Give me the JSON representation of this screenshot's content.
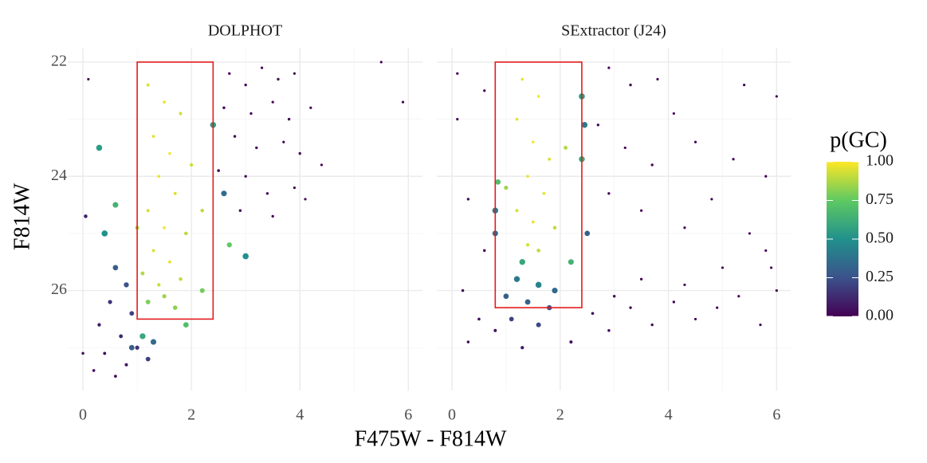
{
  "x_label": "F475W - F814W",
  "y_label": "F814W",
  "colorbar": {
    "title": "p(GC)",
    "colors": [
      "#440154",
      "#3b528b",
      "#21918c",
      "#5ec962",
      "#fde725"
    ],
    "lim": [
      0,
      1
    ],
    "ticks": [
      {
        "value": 0,
        "label": "0.00"
      },
      {
        "value": 0.25,
        "label": "0.25"
      },
      {
        "value": 0.5,
        "label": "0.50"
      },
      {
        "value": 0.75,
        "label": "0.75"
      },
      {
        "value": 1,
        "label": "1.00"
      }
    ]
  },
  "chart_data": [
    {
      "type": "scatter",
      "title": "DOLPHOT",
      "xlim": [
        -0.28,
        6.26
      ],
      "ylim": [
        27.75,
        21.75
      ],
      "xticks": [
        0,
        2,
        4,
        6
      ],
      "yticks": [
        22,
        24,
        26
      ],
      "xminor": [
        1,
        3,
        5
      ],
      "yminor": [
        23,
        25,
        27
      ],
      "grid": true,
      "box": {
        "x": [
          1,
          2.4
        ],
        "y": [
          22,
          26.5
        ],
        "color": "#e41a1c"
      },
      "x": [
        2.7,
        3.0,
        3.3,
        3.6,
        3.9,
        2.6,
        3.1,
        3.5,
        3.8,
        4.2,
        2.8,
        3.2,
        3.7,
        4.0,
        4.4,
        2.5,
        3.0,
        3.4,
        3.9,
        2.9,
        3.5,
        4.1,
        5.5,
        5.9,
        0.1,
        1.2,
        1.5,
        1.8,
        1.3,
        1.6,
        1.4,
        1.7,
        1.2,
        1.5,
        1.9,
        1.3,
        1.6,
        1.1,
        1.4,
        1.8,
        1.5,
        1.2,
        1.7,
        2.0,
        2.2,
        1.0,
        0.3,
        0.6,
        0.4,
        2.4,
        2.6,
        2.7,
        3.0,
        1.9,
        2.2,
        1.1,
        0.6,
        0.8,
        0.5,
        0.9,
        0.3,
        0.7,
        1.0,
        0.4,
        0.8,
        0.2,
        1.2,
        0.6,
        0.0,
        0.05,
        1.3,
        0.9
      ],
      "y": [
        22.2,
        22.4,
        22.1,
        22.3,
        22.2,
        22.8,
        22.9,
        22.7,
        23.0,
        22.8,
        23.3,
        23.5,
        23.4,
        23.6,
        23.8,
        23.9,
        24.0,
        24.3,
        24.2,
        24.6,
        24.7,
        24.4,
        22.0,
        22.7,
        22.3,
        22.4,
        22.7,
        22.9,
        23.3,
        23.6,
        24.0,
        24.3,
        24.6,
        24.9,
        25.0,
        25.3,
        25.5,
        25.7,
        25.9,
        25.8,
        26.1,
        26.2,
        26.3,
        23.8,
        24.6,
        24.9,
        23.5,
        24.5,
        25.0,
        23.1,
        24.3,
        25.2,
        25.4,
        26.6,
        26.0,
        26.8,
        25.6,
        25.9,
        26.2,
        26.4,
        26.6,
        26.8,
        27.0,
        27.1,
        27.3,
        27.4,
        27.2,
        27.5,
        27.1,
        24.7,
        26.9,
        27.0
      ],
      "p": [
        0.01,
        0.01,
        0.0,
        0.01,
        0.0,
        0.02,
        0.01,
        0.0,
        0.01,
        0.0,
        0.02,
        0.01,
        0.0,
        0.01,
        0.0,
        0.03,
        0.01,
        0.01,
        0.0,
        0.02,
        0.01,
        0.0,
        0.0,
        0.0,
        0.0,
        0.95,
        0.97,
        0.93,
        0.96,
        0.98,
        0.97,
        0.95,
        0.94,
        0.97,
        0.9,
        0.95,
        0.96,
        0.88,
        0.92,
        0.9,
        0.85,
        0.8,
        0.82,
        0.92,
        0.9,
        0.86,
        0.55,
        0.65,
        0.5,
        0.55,
        0.35,
        0.75,
        0.5,
        0.7,
        0.78,
        0.6,
        0.3,
        0.25,
        0.15,
        0.2,
        0.08,
        0.12,
        0.15,
        0.05,
        0.06,
        0.03,
        0.2,
        0.04,
        0.02,
        0.1,
        0.35,
        0.3
      ]
    },
    {
      "type": "scatter",
      "title": "SExtractor (J24)",
      "xlim": [
        -0.28,
        6.26
      ],
      "ylim": [
        27.75,
        21.75
      ],
      "xticks": [
        0,
        2,
        4,
        6
      ],
      "yticks": [
        22,
        24,
        26
      ],
      "xminor": [
        1,
        3,
        5
      ],
      "yminor": [
        23,
        25,
        27
      ],
      "grid": true,
      "box": {
        "x": [
          0.8,
          2.4
        ],
        "y": [
          22,
          26.3
        ],
        "color": "#e41a1c"
      },
      "x": [
        0.1,
        0.6,
        2.9,
        3.3,
        3.8,
        4.1,
        5.4,
        6.0,
        2.7,
        3.2,
        3.7,
        4.5,
        5.2,
        5.8,
        2.9,
        3.5,
        4.3,
        4.8,
        5.5,
        0.3,
        0.1,
        5.9,
        1.3,
        1.6,
        1.2,
        1.5,
        1.8,
        1.4,
        1.7,
        1.2,
        1.5,
        1.9,
        1.4,
        1.6,
        2.1,
        1.0,
        0.85,
        0.8,
        0.8,
        2.4,
        2.45,
        2.4,
        2.5,
        2.2,
        1.3,
        1.2,
        1.6,
        1.9,
        1.0,
        1.4,
        1.8,
        1.1,
        1.6,
        0.2,
        0.5,
        0.3,
        0.8,
        2.6,
        2.9,
        3.3,
        3.7,
        4.1,
        4.5,
        4.9,
        5.3,
        5.7,
        6.0,
        1.3,
        2.2,
        3.0,
        3.5,
        4.3,
        5.0,
        5.8,
        0.6
      ],
      "y": [
        22.2,
        22.5,
        22.1,
        22.4,
        22.3,
        22.9,
        22.4,
        22.6,
        23.1,
        23.5,
        23.8,
        23.4,
        23.7,
        24.0,
        24.3,
        24.6,
        24.9,
        24.4,
        25.0,
        24.4,
        23.0,
        25.6,
        22.3,
        22.6,
        23.0,
        23.4,
        23.7,
        24.0,
        24.3,
        24.6,
        24.8,
        24.9,
        25.2,
        25.3,
        23.5,
        24.2,
        24.1,
        24.6,
        25.0,
        22.6,
        23.1,
        23.7,
        25.0,
        25.5,
        25.5,
        25.8,
        25.9,
        26.0,
        26.1,
        26.2,
        26.3,
        26.5,
        26.6,
        26.0,
        26.5,
        26.9,
        26.7,
        26.4,
        26.7,
        26.3,
        26.6,
        26.2,
        26.5,
        26.3,
        26.1,
        26.6,
        26.0,
        27.0,
        26.9,
        26.1,
        25.8,
        25.9,
        25.6,
        25.3,
        25.3
      ],
      "p": [
        0.0,
        0.01,
        0.0,
        0.01,
        0.0,
        0.0,
        0.0,
        0.0,
        0.01,
        0.0,
        0.01,
        0.0,
        0.0,
        0.0,
        0.01,
        0.0,
        0.0,
        0.0,
        0.0,
        0.01,
        0.0,
        0.0,
        0.97,
        0.98,
        0.96,
        0.98,
        0.95,
        0.97,
        0.96,
        0.94,
        0.97,
        0.9,
        0.93,
        0.9,
        0.88,
        0.85,
        0.7,
        0.4,
        0.35,
        0.55,
        0.4,
        0.6,
        0.3,
        0.65,
        0.6,
        0.4,
        0.45,
        0.35,
        0.3,
        0.32,
        0.25,
        0.2,
        0.22,
        0.02,
        0.03,
        0.02,
        0.05,
        0.03,
        0.02,
        0.01,
        0.01,
        0.01,
        0.0,
        0.0,
        0.0,
        0.0,
        0.0,
        0.08,
        0.06,
        0.02,
        0.01,
        0.0,
        0.0,
        0.0,
        0.02
      ]
    }
  ]
}
